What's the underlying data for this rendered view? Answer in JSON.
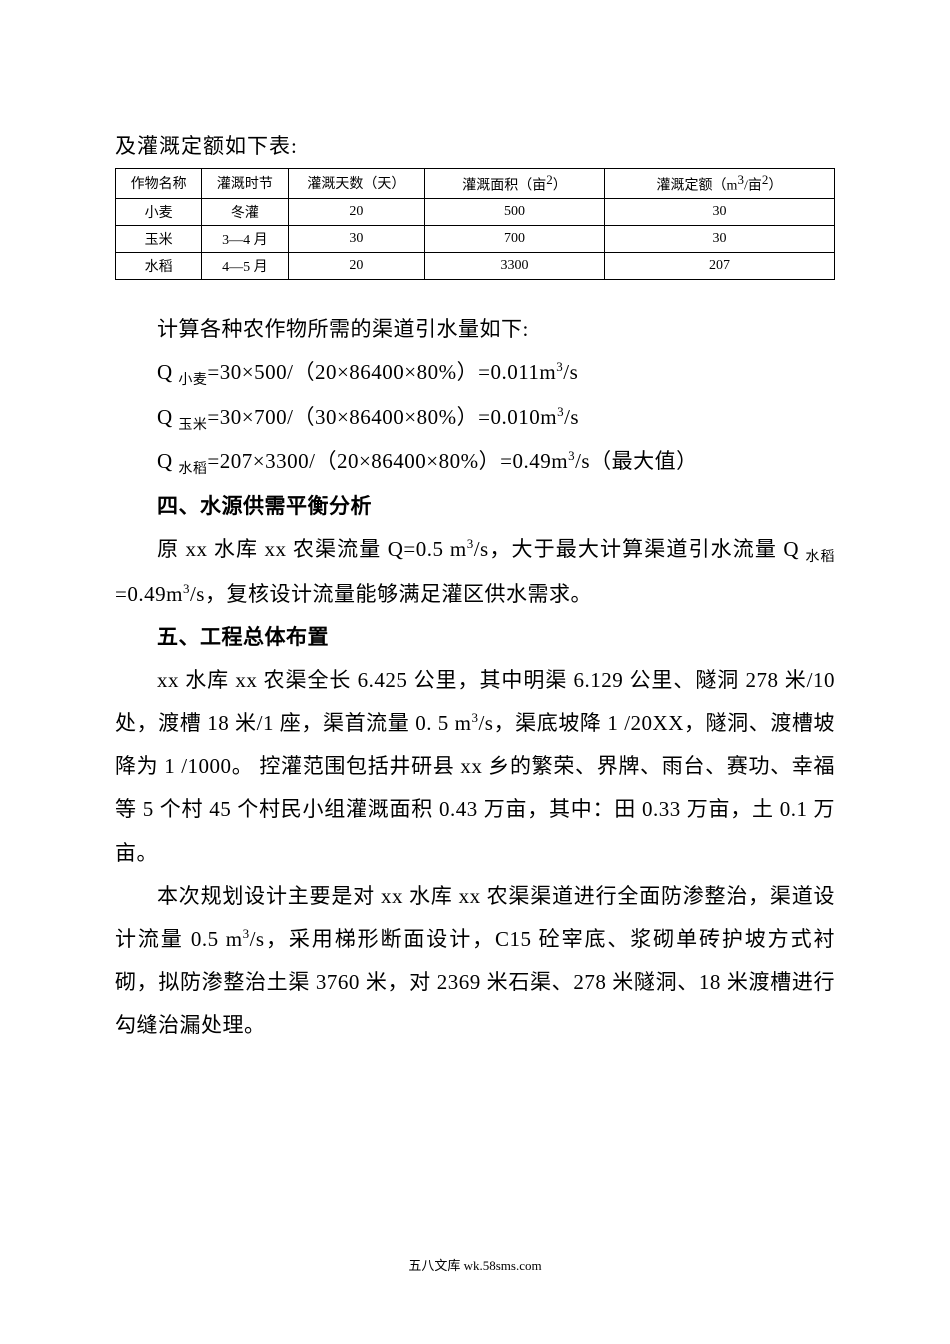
{
  "intro": "及灌溉定额如下表:",
  "table": {
    "headers": {
      "crop": "作物名称",
      "season": "灌溉时节",
      "days": "灌溉天数（天）",
      "area_prefix": "灌溉面积（亩",
      "area_sup": "2",
      "area_suffix": "）",
      "quota_prefix": "灌溉定额（m",
      "quota_sup1": "3",
      "quota_mid": "/亩",
      "quota_sup2": "2",
      "quota_suffix": "）"
    },
    "rows": [
      {
        "crop": "小麦",
        "season": "冬灌",
        "days": "20",
        "area": "500",
        "quota": "30"
      },
      {
        "crop": "玉米",
        "season": "3—4 月",
        "days": "30",
        "area": "700",
        "quota": "30"
      },
      {
        "crop": "水稻",
        "season": "4—5 月",
        "days": "20",
        "area": "3300",
        "quota": "207"
      }
    ]
  },
  "calc_intro": "计算各种农作物所需的渠道引水量如下:",
  "calc1": {
    "q": "Q ",
    "sub": "小麦",
    "eq": "=30×500/（20×86400×80%）=0.011m",
    "sup": "3",
    "tail": "/s"
  },
  "calc2": {
    "q": "Q ",
    "sub": "玉米",
    "eq": "=30×700/（30×86400×80%）=0.010m",
    "sup": "3",
    "tail": "/s"
  },
  "calc3": {
    "q": "Q ",
    "sub": "水稻",
    "eq": "=207×3300/（20×86400×80%）=0.49m",
    "sup": "3",
    "tail": "/s（最大值）"
  },
  "heading4": "四、水源供需平衡分析",
  "para4": {
    "t1": "原 xx 水库 xx 农渠流量 Q=0.5 m",
    "sup1": "3",
    "t2": "/s，大于最大计算渠道引水流量 Q ",
    "sub1": "水稻",
    "t3": "=0.49m",
    "sup2": "3",
    "t4": "/s，复核设计流量能够满足灌区供水需求。"
  },
  "heading5": "五、工程总体布置",
  "para5a": {
    "t1": "xx 水库 xx 农渠全长 6.425 公里，其中明渠 6.129 公里、隧洞 278 米/10 处，渡槽 18 米/1 座，渠首流量 0. 5 m",
    "sup1": "3",
    "t2": "/s，渠底坡降 1 /20XX，隧洞、渡槽坡降为 1 /1000。 控灌范围包括井研县 xx 乡的繁荣、界牌、雨台、赛功、幸福等 5 个村 45 个村民小组灌溉面积 0.43 万亩，其中：田 0.33 万亩，土 0.1 万亩。"
  },
  "para5b": {
    "t1": "本次规划设计主要是对 xx 水库 xx 农渠渠道进行全面防渗整治，渠道设计流量 0.5 m",
    "sup1": "3",
    "t2": "/s，采用梯形断面设计，C15 砼宰底、浆砌单砖护坡方式衬砌，拟防渗整治土渠 3760 米，对 2369 米石渠、278 米隧洞、18 米渡槽进行勾缝治漏处理。"
  },
  "footer": "五八文库 wk.58sms.com"
}
